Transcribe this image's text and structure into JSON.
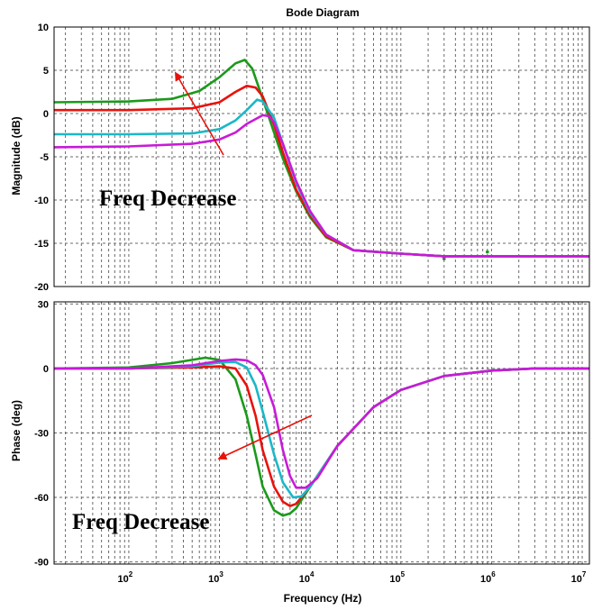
{
  "chart_data": {
    "type": "line",
    "title": "Bode Diagram",
    "xlabel": "Frequency (Hz)",
    "xscale": "log",
    "xlim": [
      15,
      12000000
    ],
    "x_ticks": [
      100,
      1000,
      10000,
      100000,
      1000000,
      10000000
    ],
    "x_tick_labels": [
      {
        "base": "10",
        "exp": "2"
      },
      {
        "base": "10",
        "exp": "3"
      },
      {
        "base": "10",
        "exp": "4"
      },
      {
        "base": "10",
        "exp": "5"
      },
      {
        "base": "10",
        "exp": "6"
      },
      {
        "base": "10",
        "exp": "7"
      }
    ],
    "grid": true,
    "colors": {
      "green": "#1a9a1a",
      "red": "#e8120c",
      "cyan": "#1ab8c8",
      "magenta": "#c81ad8",
      "arrow": "#e8120c",
      "grid": "#6a6a6a"
    },
    "panels": [
      {
        "ylabel": "Magnitude (dB)",
        "ylim": [
          -20,
          10
        ],
        "y_ticks": [
          10,
          5,
          0,
          -5,
          -10,
          -15,
          -20
        ],
        "annotation": "Freq Decrease",
        "series": [
          {
            "color": "green",
            "points": [
              [
                15,
                1.3
              ],
              [
                100,
                1.4
              ],
              [
                300,
                1.7
              ],
              [
                600,
                2.6
              ],
              [
                1000,
                4.2
              ],
              [
                1500,
                5.8
              ],
              [
                1900,
                6.2
              ],
              [
                2300,
                5.2
              ],
              [
                3000,
                1.7
              ],
              [
                4000,
                -2.2
              ],
              [
                5000,
                -5.2
              ],
              [
                7000,
                -9.0
              ],
              [
                10000,
                -12.0
              ],
              [
                15000,
                -14.3
              ],
              [
                30000,
                -15.8
              ],
              [
                100000,
                -16.2
              ],
              [
                300000,
                -16.5
              ],
              [
                12000000,
                -16.5
              ]
            ]
          },
          {
            "color": "red",
            "points": [
              [
                15,
                0.4
              ],
              [
                100,
                0.4
              ],
              [
                500,
                0.6
              ],
              [
                1000,
                1.3
              ],
              [
                1500,
                2.5
              ],
              [
                2000,
                3.2
              ],
              [
                2500,
                3.0
              ],
              [
                3000,
                2.0
              ],
              [
                4000,
                -1.3
              ],
              [
                5000,
                -4.5
              ],
              [
                7000,
                -8.8
              ],
              [
                10000,
                -11.8
              ],
              [
                15000,
                -14.2
              ],
              [
                30000,
                -15.8
              ],
              [
                100000,
                -16.2
              ],
              [
                300000,
                -16.5
              ],
              [
                12000000,
                -16.5
              ]
            ]
          },
          {
            "color": "cyan",
            "points": [
              [
                15,
                -2.4
              ],
              [
                100,
                -2.4
              ],
              [
                500,
                -2.3
              ],
              [
                1000,
                -1.8
              ],
              [
                1500,
                -0.8
              ],
              [
                2000,
                0.4
              ],
              [
                2600,
                1.6
              ],
              [
                3000,
                1.4
              ],
              [
                4000,
                -0.5
              ],
              [
                5000,
                -3.5
              ],
              [
                7000,
                -8.0
              ],
              [
                10000,
                -11.5
              ],
              [
                15000,
                -14.0
              ],
              [
                30000,
                -15.8
              ],
              [
                100000,
                -16.2
              ],
              [
                300000,
                -16.5
              ],
              [
                12000000,
                -16.5
              ]
            ]
          },
          {
            "color": "magenta",
            "points": [
              [
                15,
                -3.9
              ],
              [
                100,
                -3.8
              ],
              [
                500,
                -3.5
              ],
              [
                1000,
                -3.0
              ],
              [
                1500,
                -2.2
              ],
              [
                2000,
                -1.2
              ],
              [
                3000,
                -0.2
              ],
              [
                3500,
                -0.3
              ],
              [
                4000,
                -1.0
              ],
              [
                5000,
                -3.5
              ],
              [
                7000,
                -7.8
              ],
              [
                10000,
                -11.3
              ],
              [
                15000,
                -14.0
              ],
              [
                30000,
                -15.8
              ],
              [
                100000,
                -16.2
              ],
              [
                300000,
                -16.5
              ],
              [
                12000000,
                -16.5
              ]
            ]
          }
        ]
      },
      {
        "ylabel": "Phase (deg)",
        "ylim": [
          -91,
          31
        ],
        "y_ticks": [
          30,
          0,
          -30,
          -60,
          -90
        ],
        "annotation": "Freq Decrease",
        "series": [
          {
            "color": "green",
            "points": [
              [
                15,
                0
              ],
              [
                100,
                0.5
              ],
              [
                300,
                2.5
              ],
              [
                700,
                5.0
              ],
              [
                1000,
                4.0
              ],
              [
                1500,
                -5.0
              ],
              [
                2000,
                -22.0
              ],
              [
                2500,
                -40.0
              ],
              [
                3000,
                -55.0
              ],
              [
                4000,
                -66.0
              ],
              [
                5000,
                -68.5
              ],
              [
                6000,
                -67.5
              ],
              [
                7000,
                -65.0
              ],
              [
                10000,
                -55.0
              ],
              [
                20000,
                -36.0
              ],
              [
                50000,
                -18.0
              ],
              [
                100000,
                -10.0
              ],
              [
                300000,
                -3.5
              ],
              [
                1000000,
                -1.0
              ],
              [
                3000000,
                0
              ],
              [
                12000000,
                0
              ]
            ]
          },
          {
            "color": "red",
            "points": [
              [
                15,
                0
              ],
              [
                100,
                0
              ],
              [
                500,
                0.5
              ],
              [
                1000,
                1.0
              ],
              [
                1500,
                0
              ],
              [
                2000,
                -8.0
              ],
              [
                2500,
                -22.0
              ],
              [
                3000,
                -38.0
              ],
              [
                4000,
                -55.0
              ],
              [
                5000,
                -62.0
              ],
              [
                6000,
                -64.0
              ],
              [
                7000,
                -63.0
              ],
              [
                10000,
                -55.0
              ],
              [
                20000,
                -36.0
              ],
              [
                50000,
                -18.0
              ],
              [
                100000,
                -10.0
              ],
              [
                300000,
                -3.5
              ],
              [
                1000000,
                -1.0
              ],
              [
                3000000,
                0
              ],
              [
                12000000,
                0
              ]
            ]
          },
          {
            "color": "cyan",
            "points": [
              [
                15,
                0
              ],
              [
                100,
                0
              ],
              [
                500,
                1.0
              ],
              [
                1000,
                2.8
              ],
              [
                1500,
                3.0
              ],
              [
                2000,
                0.5
              ],
              [
                2500,
                -8.0
              ],
              [
                3000,
                -20.0
              ],
              [
                4000,
                -40.0
              ],
              [
                5000,
                -53.0
              ],
              [
                6500,
                -60.0
              ],
              [
                8000,
                -59.5
              ],
              [
                10000,
                -55.0
              ],
              [
                20000,
                -36.0
              ],
              [
                50000,
                -18.0
              ],
              [
                100000,
                -10.0
              ],
              [
                300000,
                -3.5
              ],
              [
                1000000,
                -1.0
              ],
              [
                3000000,
                0
              ],
              [
                12000000,
                0
              ]
            ]
          },
          {
            "color": "magenta",
            "points": [
              [
                15,
                0
              ],
              [
                100,
                0
              ],
              [
                500,
                1.5
              ],
              [
                1000,
                3.5
              ],
              [
                1500,
                4.2
              ],
              [
                2000,
                3.8
              ],
              [
                2500,
                1.5
              ],
              [
                3000,
                -3.0
              ],
              [
                4000,
                -18.0
              ],
              [
                5000,
                -38.0
              ],
              [
                6000,
                -50.0
              ],
              [
                7000,
                -55.5
              ],
              [
                9000,
                -55.5
              ],
              [
                12000,
                -51.0
              ],
              [
                20000,
                -36.0
              ],
              [
                50000,
                -18.0
              ],
              [
                100000,
                -10.0
              ],
              [
                300000,
                -3.5
              ],
              [
                1000000,
                -1.0
              ],
              [
                3000000,
                0
              ],
              [
                12000000,
                0
              ]
            ]
          }
        ]
      }
    ],
    "markers": [
      {
        "color": "green",
        "x": 900000,
        "y": -16.0
      },
      {
        "color": "green",
        "x": 300000,
        "y": -16.8
      },
      {
        "color": "magenta",
        "x": 300000,
        "y": -16.6
      }
    ]
  }
}
